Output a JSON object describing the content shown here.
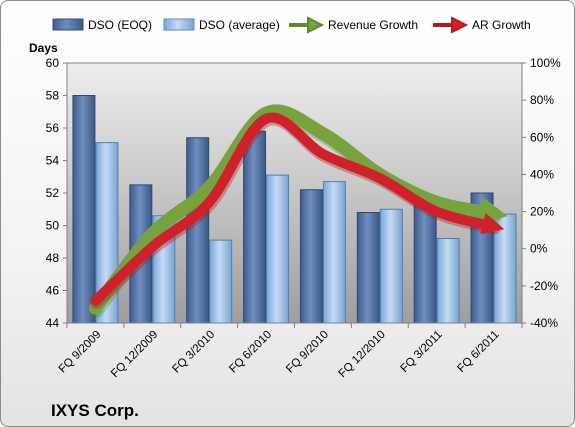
{
  "chart_data": {
    "type": "bar",
    "title": "IXYS Corp.",
    "ylabel": "Days",
    "ylim": [
      44,
      60
    ],
    "y_ticks": [
      44,
      46,
      48,
      50,
      52,
      54,
      56,
      58,
      60
    ],
    "y2lim": [
      -40,
      100
    ],
    "y2_ticks": [
      "-40%",
      "-20%",
      "0%",
      "20%",
      "40%",
      "60%",
      "80%",
      "100%"
    ],
    "y2_tick_values": [
      -40,
      -20,
      0,
      20,
      40,
      60,
      80,
      100
    ],
    "categories": [
      "FQ 9/2009",
      "FQ 12/2009",
      "FQ 3/2010",
      "FQ 6/2010",
      "FQ 9/2010",
      "FQ 12/2010",
      "FQ 3/2011",
      "FQ 6/2011"
    ],
    "series": [
      {
        "name": "DSO (EOQ)",
        "type": "bar",
        "axis": "left",
        "values": [
          58.0,
          52.5,
          55.4,
          55.8,
          52.2,
          50.8,
          51.3,
          52.0
        ]
      },
      {
        "name": "DSO (average)",
        "type": "bar",
        "axis": "left",
        "values": [
          55.1,
          50.6,
          49.1,
          53.1,
          52.7,
          51.0,
          49.2,
          50.7
        ]
      },
      {
        "name": "Revenue Growth",
        "type": "line",
        "axis": "right",
        "values": [
          -32,
          8,
          33,
          73,
          62,
          40,
          25,
          19
        ]
      },
      {
        "name": "AR Growth",
        "type": "line",
        "axis": "right",
        "values": [
          -28,
          1,
          25,
          70,
          51,
          38,
          20,
          12
        ]
      }
    ],
    "legend_position": "top",
    "grid": false,
    "colors": {
      "dso_eoq": "#4f6fa0",
      "dso_avg": "#9cc2e8",
      "revenue_growth": "#77a33f",
      "ar_growth": "#d0202a",
      "plot_bg": "#bfbfbf"
    }
  }
}
